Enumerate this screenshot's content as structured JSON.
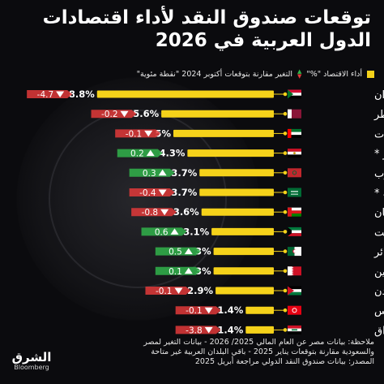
{
  "title_line1": "توقعات صندوق النقد لأداء اقتصادات",
  "title_line2": "الدول العربية في 2026",
  "legend": {
    "bar": "أداء الاقتصاد \"%\"",
    "change": "التغير مقارنة بتوقعات أكتوبر 2024 \"نقطة مئوية\""
  },
  "colors": {
    "bar": "#f5d21a",
    "up": "#31b34b",
    "down": "#e23a3a",
    "label": "#ffffff",
    "background": "#0b0b0e"
  },
  "chart_data": {
    "type": "bar",
    "orientation": "horizontal",
    "categories": [
      "السودان",
      "قطر",
      "الإمارات",
      "مصر *",
      "المغرب",
      "السعودية *",
      "عُمان",
      "الكويت",
      "الجزائر",
      "البحرين",
      "الأردن",
      "تونس",
      "العراق"
    ],
    "series": [
      {
        "name": "أداء الاقتصاد \"%\"",
        "values": [
          8.8,
          5.6,
          5,
          4.3,
          3.7,
          3.7,
          3.6,
          3.1,
          3,
          3,
          2.9,
          1.4,
          1.4
        ]
      },
      {
        "name": "التغير مقارنة بتوقعات أكتوبر 2024 \"نقطة مئوية\"",
        "values": [
          -4.7,
          -0.2,
          -0.1,
          0.2,
          0.3,
          -0.4,
          -0.8,
          0.6,
          0.5,
          0.1,
          -0.1,
          -0.1,
          -3.8
        ]
      }
    ],
    "value_labels": [
      "8.8%",
      "5.6%",
      "5%",
      "4.3%",
      "3.7%",
      "3.7%",
      "3.6%",
      "3.1%",
      "3%",
      "3%",
      "2.9%",
      "1.4%",
      "1.4%"
    ],
    "change_labels": [
      "-4.7",
      "-0.2",
      "-0.1",
      "0.2",
      "0.3",
      "-0.4",
      "-0.8",
      "0.6",
      "0.5",
      "0.1",
      "-0.1",
      "-0.1",
      "-3.8"
    ],
    "flags": [
      "sudan-flag",
      "qatar-flag",
      "uae-flag",
      "egypt-flag",
      "morocco-flag",
      "saudi-flag",
      "oman-flag",
      "kuwait-flag",
      "algeria-flag",
      "bahrain-flag",
      "jordan-flag",
      "tunisia-flag",
      "iraq-flag"
    ]
  },
  "footnote": [
    "ملاحظة: بيانات مصر عن العام المالي 2025/ 2026 - بيانات التغير لمصر",
    "والسعودية مقارنة بتوقعات يناير 2025 - باقي البلدان العربية غير متاحة",
    "المصدر: بيانات صندوق النقد الدولي مراجعة أبريل 2025"
  ],
  "logo": {
    "name": "الشرق",
    "sub": "Bloomberg"
  }
}
